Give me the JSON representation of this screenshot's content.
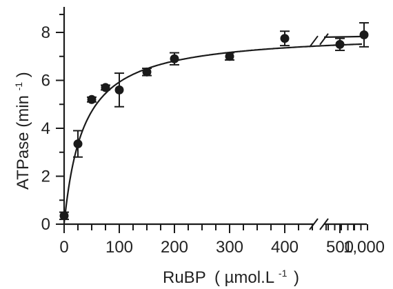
{
  "chart_data": {
    "type": "scatter",
    "xlabel": "RuBP",
    "xlabel_unit": "( µmol.L",
    "xlabel_unit_sup": "-1",
    "xlabel_unit_close": ")",
    "ylabel": "ATPase (min",
    "ylabel_sup": "-1",
    "ylabel_close": ")",
    "x_tick_labels": [
      "0",
      "100",
      "200",
      "300",
      "400",
      "500",
      "1,000"
    ],
    "y_tick_labels": [
      "0",
      "2",
      "4",
      "6",
      "8"
    ],
    "ylim": [
      0,
      9
    ],
    "x_axis_break": "between 500 and 1,000",
    "points": [
      {
        "x": 0,
        "y": 0.35,
        "err": 0.15
      },
      {
        "x": 25,
        "y": 3.35,
        "err": 0.55
      },
      {
        "x": 50,
        "y": 5.2,
        "err": 0.1
      },
      {
        "x": 75,
        "y": 5.7,
        "err": 0.1
      },
      {
        "x": 100,
        "y": 5.6,
        "err": 0.7
      },
      {
        "x": 150,
        "y": 6.35,
        "err": 0.15
      },
      {
        "x": 200,
        "y": 6.9,
        "err": 0.25
      },
      {
        "x": 300,
        "y": 7.0,
        "err": 0.15
      },
      {
        "x": 400,
        "y": 7.75,
        "err": 0.3
      },
      {
        "x": 500,
        "y": 7.5,
        "err": 0.25
      },
      {
        "x": 1000,
        "y": 7.9,
        "err": 0.5
      }
    ],
    "fit": {
      "type": "michaelis-menten",
      "vmax": 8.0,
      "km": 35
    }
  }
}
